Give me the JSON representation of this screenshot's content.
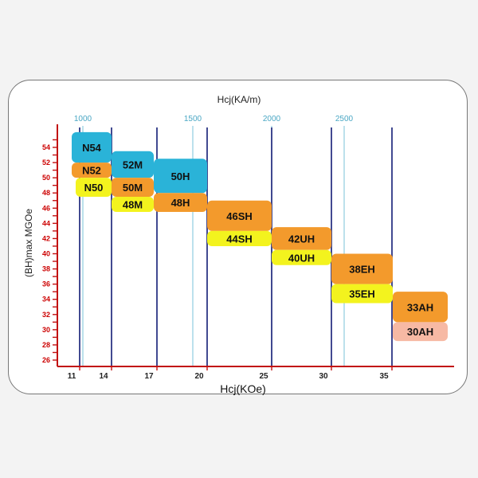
{
  "chart_data": {
    "type": "bar",
    "top_axis_title": "Hcj(KA/m)",
    "top_ticks": [
      {
        "value": 1000,
        "label": "1000"
      },
      {
        "value": 1500,
        "label": "1500"
      },
      {
        "value": 2000,
        "label": "2000"
      },
      {
        "value": 2500,
        "label": "2500"
      }
    ],
    "xlabel": "Hcj(KOe)",
    "ylabel": "(BH)max MGOe",
    "xlim": [
      9,
      38.5
    ],
    "ylim": [
      25.5,
      56
    ],
    "x_ticks": [
      11,
      14,
      17,
      20,
      25,
      30,
      35
    ],
    "y_ticks": [
      26,
      28,
      30,
      32,
      34,
      36,
      38,
      40,
      42,
      44,
      46,
      48,
      50,
      52,
      54
    ],
    "grades": [
      {
        "label": "N54",
        "x_start": 11,
        "x_end": 14,
        "y_low": 52,
        "y_high": 56,
        "color": "#2ab3d8"
      },
      {
        "label": "N52",
        "x_start": 11,
        "x_end": 14,
        "y_low": 50,
        "y_high": 52,
        "color": "#f39a2c"
      },
      {
        "label": "N50",
        "x_start": 11.3,
        "x_end": 14,
        "y_low": 47.5,
        "y_high": 50,
        "color": "#f3f31e"
      },
      {
        "label": "52M",
        "x_start": 14,
        "x_end": 17,
        "y_low": 50,
        "y_high": 53.5,
        "color": "#2ab3d8"
      },
      {
        "label": "50M",
        "x_start": 14,
        "x_end": 17,
        "y_low": 47.5,
        "y_high": 50,
        "color": "#f39a2c"
      },
      {
        "label": "48M",
        "x_start": 14,
        "x_end": 17,
        "y_low": 45.5,
        "y_high": 47.5,
        "color": "#f3f31e"
      },
      {
        "label": "50H",
        "x_start": 17,
        "x_end": 20,
        "y_low": 48,
        "y_high": 52.5,
        "color": "#2ab3d8"
      },
      {
        "label": "48H",
        "x_start": 17,
        "x_end": 20,
        "y_low": 45.5,
        "y_high": 48,
        "color": "#f39a2c"
      },
      {
        "label": "46SH",
        "x_start": 20,
        "x_end": 25,
        "y_low": 43,
        "y_high": 47,
        "color": "#f39a2c"
      },
      {
        "label": "44SH",
        "x_start": 20,
        "x_end": 25,
        "y_low": 41,
        "y_high": 43,
        "color": "#f3f31e"
      },
      {
        "label": "42UH",
        "x_start": 25,
        "x_end": 30,
        "y_low": 40.5,
        "y_high": 43.5,
        "color": "#f39a2c"
      },
      {
        "label": "40UH",
        "x_start": 25,
        "x_end": 30,
        "y_low": 38.5,
        "y_high": 40.5,
        "color": "#f3f31e"
      },
      {
        "label": "38EH",
        "x_start": 30,
        "x_end": 35,
        "y_low": 36,
        "y_high": 40,
        "color": "#f39a2c"
      },
      {
        "label": "35EH",
        "x_start": 30,
        "x_end": 35,
        "y_low": 33.5,
        "y_high": 36,
        "color": "#f3f31e"
      },
      {
        "label": "33AH",
        "x_start": 35,
        "x_end": 39,
        "y_low": 31,
        "y_high": 35,
        "color": "#f39a2c"
      },
      {
        "label": "30AH",
        "x_start": 35,
        "x_end": 39,
        "y_low": 28.5,
        "y_high": 31,
        "color": "#f7b9a4"
      }
    ],
    "grid": false,
    "legend": "none"
  }
}
